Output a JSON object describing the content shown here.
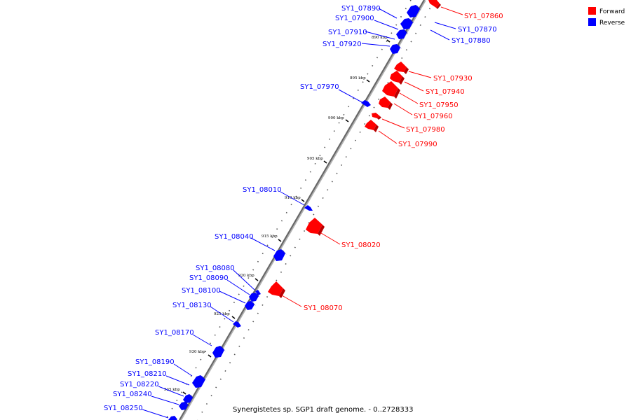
{
  "colors": {
    "forward": "#ff0000",
    "forward_dark": "#b80000",
    "reverse": "#0000ff",
    "reverse_dark": "#0000a8",
    "axis": "#555555"
  },
  "legend": {
    "forward_label": "Forward",
    "reverse_label": "Reverse"
  },
  "footer": "Synergistetes sp. SGP1 draft genome. - 0..2728333",
  "ticks": [
    "890 kbp",
    "895 kbp",
    "900 kbp",
    "905 kbp",
    "910 kbp",
    "915 kbp",
    "920 kbp",
    "925 kbp",
    "930 kbp",
    "935 kbp"
  ],
  "forward_genes": [
    "SY1_07860",
    "SY1_07930",
    "SY1_07940",
    "SY1_07950",
    "SY1_07960",
    "SY1_07980",
    "SY1_07990",
    "SY1_08020",
    "SY1_08070"
  ],
  "reverse_genes": [
    "SY1_07890",
    "SY1_07900",
    "SY1_07910",
    "SY1_07920",
    "SY1_07870",
    "SY1_07880",
    "SY1_07970",
    "SY1_08010",
    "SY1_08040",
    "SY1_08080",
    "SY1_08090",
    "SY1_08100",
    "SY1_08130",
    "SY1_08170",
    "SY1_08190",
    "SY1_08210",
    "SY1_08220",
    "SY1_08240",
    "SY1_08250"
  ]
}
